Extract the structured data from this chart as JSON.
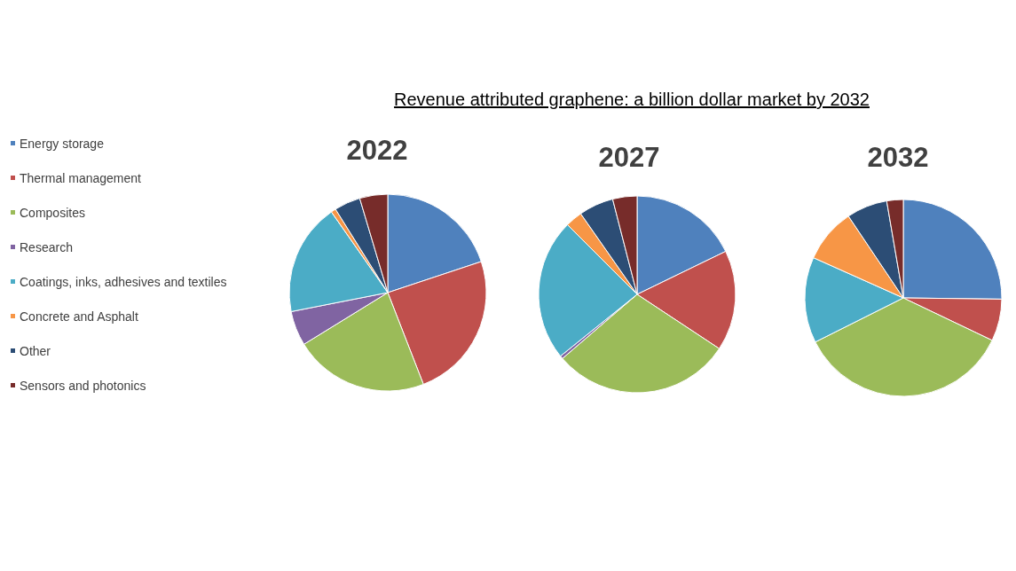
{
  "chart_data": {
    "type": "pie",
    "title": "Revenue attributed graphene: a billion dollar market by 2032",
    "legend": "left",
    "categories": [
      "Energy storage",
      "Thermal management",
      "Composites",
      "Research",
      "Coatings, inks, adhesives and textiles",
      "Concrete and Asphalt",
      "Other",
      "Sensors and photonics"
    ],
    "colors": [
      "#4f81bd",
      "#c0504d",
      "#9bbb59",
      "#8064a2",
      "#4bacc6",
      "#f79646",
      "#2c4d75",
      "#772c2a"
    ],
    "series": [
      {
        "name": "2022",
        "values": [
          19.9,
          24.2,
          22.1,
          5.7,
          18.4,
          0.8,
          4.3,
          4.6
        ]
      },
      {
        "name": "2027",
        "values": [
          17.8,
          16.5,
          29.4,
          0.5,
          23.3,
          2.8,
          5.7,
          4.0
        ]
      },
      {
        "name": "2032",
        "values": [
          25.2,
          6.9,
          35.5,
          0,
          14.1,
          8.9,
          6.7,
          2.7
        ]
      }
    ]
  }
}
